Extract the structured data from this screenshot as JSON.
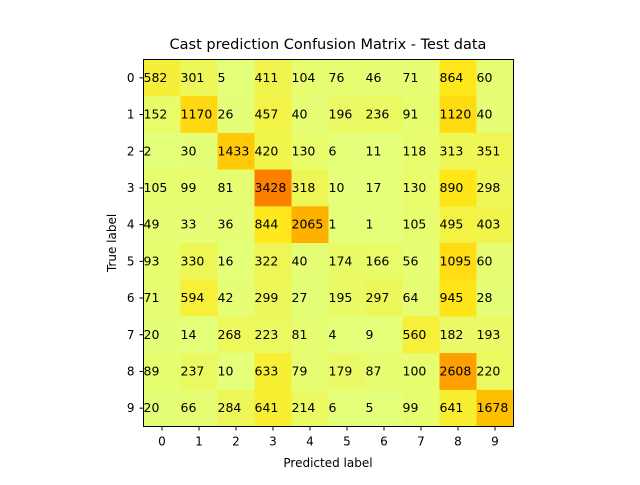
{
  "chart_data": {
    "type": "heatmap",
    "title": "Cast prediction Confusion Matrix - Test data",
    "xlabel": "Predicted label",
    "ylabel": "True label",
    "x_categories": [
      "0",
      "1",
      "2",
      "3",
      "4",
      "5",
      "6",
      "7",
      "8",
      "9"
    ],
    "y_categories": [
      "0",
      "1",
      "2",
      "3",
      "4",
      "5",
      "6",
      "7",
      "8",
      "9"
    ],
    "values": [
      [
        582,
        301,
        5,
        411,
        104,
        76,
        46,
        71,
        864,
        60
      ],
      [
        152,
        1170,
        26,
        457,
        40,
        196,
        236,
        91,
        1120,
        40
      ],
      [
        2,
        30,
        1433,
        420,
        130,
        6,
        11,
        118,
        313,
        351
      ],
      [
        105,
        99,
        81,
        3428,
        318,
        10,
        17,
        130,
        890,
        298
      ],
      [
        49,
        33,
        36,
        844,
        2065,
        1,
        1,
        105,
        495,
        403
      ],
      [
        93,
        330,
        16,
        322,
        40,
        174,
        166,
        56,
        1095,
        60
      ],
      [
        71,
        594,
        42,
        299,
        27,
        195,
        297,
        64,
        945,
        28
      ],
      [
        20,
        14,
        268,
        223,
        81,
        4,
        9,
        560,
        182,
        193
      ],
      [
        89,
        237,
        10,
        633,
        79,
        179,
        87,
        100,
        2608,
        220
      ],
      [
        20,
        66,
        284,
        641,
        214,
        6,
        5,
        99,
        641,
        1678
      ]
    ],
    "colormap": "Wistia",
    "vmin": 1,
    "vmax": 3428,
    "grid": false,
    "legend": "none"
  }
}
